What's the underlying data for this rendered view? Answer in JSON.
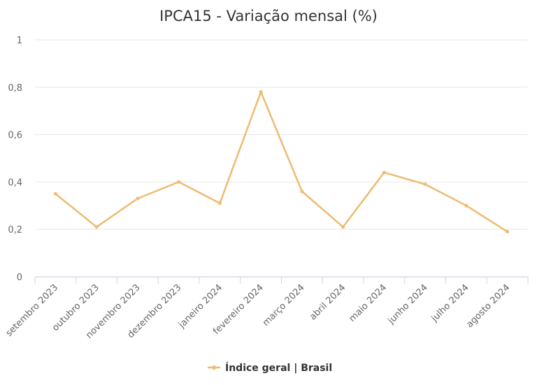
{
  "chart_data": {
    "type": "line",
    "title": "IPCA15 - Variação mensal (%)",
    "categories": [
      "setembro 2023",
      "outubro 2023",
      "novembro 2023",
      "dezembro 2023",
      "janeiro 2024",
      "fevereiro 2024",
      "março 2024",
      "abril 2024",
      "maio 2024",
      "junho 2024",
      "julho 2024",
      "agosto 2024"
    ],
    "series": [
      {
        "name": "Índice geral | Brasil",
        "color": "#eebb70",
        "values": [
          0.35,
          0.21,
          0.33,
          0.4,
          0.31,
          0.78,
          0.36,
          0.21,
          0.44,
          0.39,
          0.3,
          0.19
        ]
      }
    ],
    "ylim": [
      0,
      1
    ],
    "yticks": [
      0,
      {
        "value": 0.2,
        "label": "0,2"
      },
      {
        "value": 0.4,
        "label": "0,4"
      },
      {
        "value": 0.6,
        "label": "0,6"
      },
      {
        "value": 0.8,
        "label": "0,8"
      },
      1
    ],
    "grid": true,
    "legend": "bottom"
  }
}
